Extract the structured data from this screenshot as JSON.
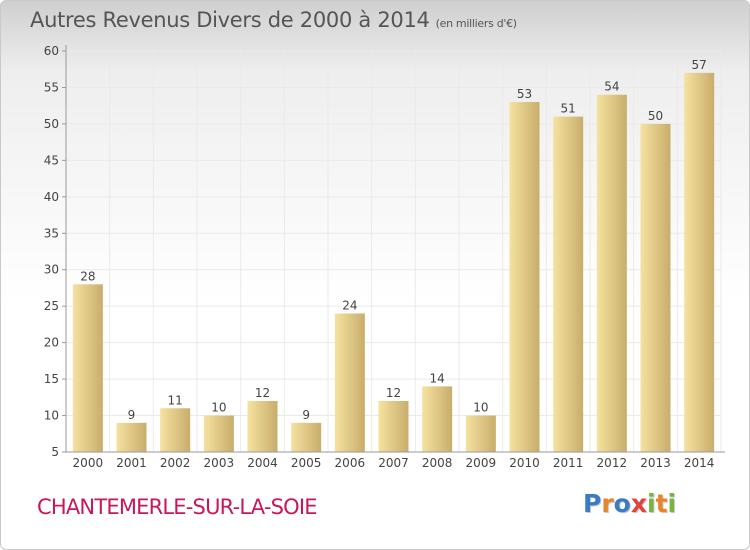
{
  "title": "Autres Revenus Divers de 2000 à 2014",
  "title_unit": "(en milliers d'€)",
  "place": "CHANTEMERLE-SUR-LA-SOIE",
  "logo": {
    "letters": [
      "P",
      "r",
      "o",
      "x",
      "i",
      "t",
      "i"
    ],
    "colors": [
      "#3a7cc2",
      "#e8852a",
      "#3a7cc2",
      "#e0453d",
      "#78b441",
      "#e8852a",
      "#78b441"
    ]
  },
  "colors": {
    "bar_light": "#f6e2a0",
    "bar_dark": "#c8ad6c",
    "axis": "#9a9a9a",
    "grid": "#eaeaea",
    "text": "#444444",
    "place": "#c8175d"
  },
  "chart_data": {
    "type": "bar",
    "title": "Autres Revenus Divers de 2000 à 2014",
    "categories": [
      "2000",
      "2001",
      "2002",
      "2003",
      "2004",
      "2005",
      "2006",
      "2007",
      "2008",
      "2009",
      "2010",
      "2011",
      "2012",
      "2013",
      "2014"
    ],
    "values": [
      28,
      9,
      11,
      10,
      12,
      9,
      24,
      12,
      14,
      10,
      53,
      51,
      54,
      50,
      57
    ],
    "ylim": [
      5,
      60
    ],
    "yticks": [
      5,
      10,
      15,
      20,
      25,
      30,
      35,
      40,
      45,
      50,
      55,
      60
    ],
    "grid": true,
    "data_labels": true
  }
}
